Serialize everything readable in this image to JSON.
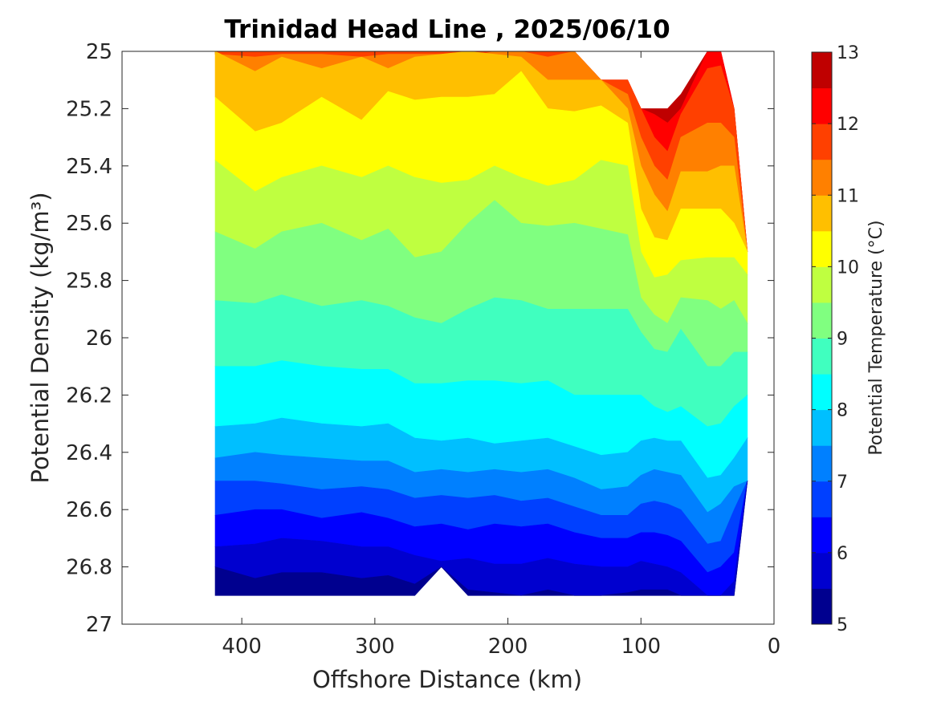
{
  "chart_data": {
    "type": "heatmap",
    "title": "Trinidad Head Line , 2025/06/10",
    "xlabel": "Offshore Distance (km)",
    "ylabel": "Potential Density (kg/m³)",
    "colorbar_label": "Potential Temperature (°C)",
    "xlim": [
      490,
      0
    ],
    "ylim": [
      25,
      27
    ],
    "x_direction": "reversed",
    "y_direction": "reversed",
    "x_ticks": [
      400,
      300,
      200,
      100,
      0
    ],
    "y_ticks": [
      25,
      25.2,
      25.4,
      25.6,
      25.8,
      26,
      26.2,
      26.4,
      26.6,
      26.8,
      27
    ],
    "colorbar_range": [
      5,
      13
    ],
    "colorbar_step": 0.5,
    "colorbar_ticks": [
      5,
      6,
      7,
      8,
      9,
      10,
      11,
      12,
      13
    ],
    "colormap": [
      "#00008f",
      "#0000cf",
      "#0000ff",
      "#0040ff",
      "#0080ff",
      "#00bfff",
      "#00ffff",
      "#40ffbf",
      "#80ff80",
      "#bfff40",
      "#ffff00",
      "#ffbf00",
      "#ff8000",
      "#ff4000",
      "#ff0000",
      "#bf0000"
    ],
    "grid": false,
    "stations_x": [
      420,
      390,
      370,
      340,
      310,
      290,
      270,
      250,
      230,
      210,
      190,
      170,
      150,
      130,
      110,
      100,
      90,
      80,
      70,
      50,
      40,
      30,
      20
    ],
    "bottom_density": [
      26.9,
      26.9,
      26.9,
      26.9,
      26.9,
      26.9,
      26.9,
      26.8,
      26.9,
      26.9,
      26.9,
      26.9,
      26.9,
      26.9,
      26.9,
      26.9,
      26.9,
      26.9,
      26.9,
      26.9,
      26.9,
      26.9,
      26.5
    ],
    "surface_density": [
      25,
      25,
      25,
      25,
      25,
      25,
      25,
      25,
      25,
      25,
      25,
      25,
      25,
      25.1,
      25.1,
      25.2,
      25.2,
      25.2,
      25.15,
      25,
      25,
      25.2,
      25.7
    ],
    "isotherms": [
      {
        "t": 12.5,
        "d": [
          null,
          null,
          null,
          null,
          null,
          null,
          null,
          null,
          null,
          null,
          null,
          null,
          null,
          null,
          null,
          null,
          25.22,
          25.25,
          25.2,
          null,
          null,
          null,
          null
        ]
      },
      {
        "t": 12.0,
        "d": [
          null,
          null,
          null,
          null,
          null,
          null,
          null,
          null,
          null,
          null,
          null,
          null,
          null,
          null,
          null,
          25.2,
          25.3,
          25.35,
          25.22,
          25.06,
          25.05,
          null,
          null
        ]
      },
      {
        "t": 11.5,
        "d": [
          25.01,
          25.02,
          25.01,
          25.01,
          25.02,
          25.01,
          25.01,
          25.01,
          25.02,
          25.0,
          25.0,
          25.02,
          25.0,
          null,
          25.15,
          25.3,
          25.4,
          25.45,
          25.3,
          25.25,
          25.25,
          25.3,
          null
        ]
      },
      {
        "t": 11.0,
        "d": [
          25.0,
          25.07,
          25.02,
          25.06,
          25.02,
          25.06,
          25.02,
          25.01,
          25.0,
          25.01,
          25.02,
          25.1,
          25.1,
          25.1,
          25.2,
          25.4,
          25.5,
          25.56,
          25.42,
          25.42,
          25.4,
          25.4,
          null
        ]
      },
      {
        "t": 10.5,
        "d": [
          25.16,
          25.28,
          25.25,
          25.16,
          25.24,
          25.14,
          25.17,
          25.16,
          25.16,
          25.15,
          25.07,
          25.2,
          25.21,
          25.19,
          25.25,
          25.55,
          25.65,
          25.66,
          25.55,
          25.55,
          25.55,
          25.6,
          25.7
        ]
      },
      {
        "t": 10.0,
        "d": [
          25.38,
          25.49,
          25.44,
          25.4,
          25.44,
          25.4,
          25.44,
          25.46,
          25.45,
          25.4,
          25.44,
          25.47,
          25.45,
          25.38,
          25.4,
          25.7,
          25.79,
          25.78,
          25.73,
          25.72,
          25.72,
          25.72,
          25.78
        ]
      },
      {
        "t": 9.5,
        "d": [
          25.63,
          25.69,
          25.63,
          25.6,
          25.66,
          25.62,
          25.72,
          25.7,
          25.6,
          25.52,
          25.6,
          25.61,
          25.6,
          25.62,
          25.64,
          25.86,
          25.92,
          25.95,
          25.86,
          25.87,
          25.9,
          25.87,
          25.95
        ]
      },
      {
        "t": 9.0,
        "d": [
          25.87,
          25.88,
          25.85,
          25.89,
          25.87,
          25.89,
          25.93,
          25.95,
          25.9,
          25.86,
          25.87,
          25.9,
          25.9,
          25.9,
          25.9,
          25.98,
          26.04,
          26.05,
          25.97,
          26.1,
          26.1,
          26.05,
          26.05
        ]
      },
      {
        "t": 8.5,
        "d": [
          26.1,
          26.1,
          26.08,
          26.1,
          26.11,
          26.11,
          26.16,
          26.16,
          26.15,
          26.15,
          26.16,
          26.15,
          26.2,
          26.2,
          26.2,
          26.2,
          26.24,
          26.26,
          26.24,
          26.31,
          26.3,
          26.24,
          26.2
        ]
      },
      {
        "t": 8.0,
        "d": [
          26.31,
          26.3,
          26.28,
          26.3,
          26.31,
          26.3,
          26.35,
          26.36,
          26.35,
          26.37,
          26.36,
          26.35,
          26.38,
          26.41,
          26.4,
          26.36,
          26.35,
          26.36,
          26.36,
          26.49,
          26.48,
          26.42,
          26.35
        ]
      },
      {
        "t": 7.5,
        "d": [
          26.42,
          26.4,
          26.41,
          26.42,
          26.43,
          26.43,
          26.47,
          26.46,
          26.47,
          26.46,
          26.47,
          26.46,
          26.49,
          26.53,
          26.52,
          26.48,
          26.46,
          26.47,
          26.48,
          26.61,
          26.58,
          26.52,
          26.5
        ]
      },
      {
        "t": 7.0,
        "d": [
          26.5,
          26.5,
          26.51,
          26.53,
          26.52,
          26.53,
          26.56,
          26.55,
          26.56,
          26.55,
          26.57,
          26.56,
          26.59,
          26.62,
          26.62,
          26.58,
          26.57,
          26.58,
          26.6,
          26.72,
          26.71,
          26.6,
          null
        ]
      },
      {
        "t": 6.5,
        "d": [
          26.62,
          26.6,
          26.6,
          26.63,
          26.61,
          26.63,
          26.66,
          26.65,
          26.67,
          26.65,
          26.66,
          26.65,
          26.68,
          26.7,
          26.7,
          26.68,
          26.68,
          26.69,
          26.71,
          26.82,
          26.8,
          26.75,
          null
        ]
      },
      {
        "t": 6.0,
        "d": [
          26.73,
          26.72,
          26.7,
          26.71,
          26.73,
          26.73,
          26.76,
          26.78,
          26.77,
          26.79,
          26.79,
          26.77,
          26.79,
          26.8,
          26.8,
          26.78,
          26.79,
          26.8,
          26.82,
          26.9,
          26.9,
          26.85,
          null
        ]
      },
      {
        "t": 5.5,
        "d": [
          26.8,
          26.84,
          26.82,
          26.82,
          26.84,
          26.83,
          26.86,
          null,
          26.88,
          26.89,
          26.9,
          26.88,
          26.9,
          26.9,
          26.89,
          26.88,
          26.88,
          26.88,
          26.9,
          null,
          null,
          null,
          null
        ]
      }
    ]
  }
}
